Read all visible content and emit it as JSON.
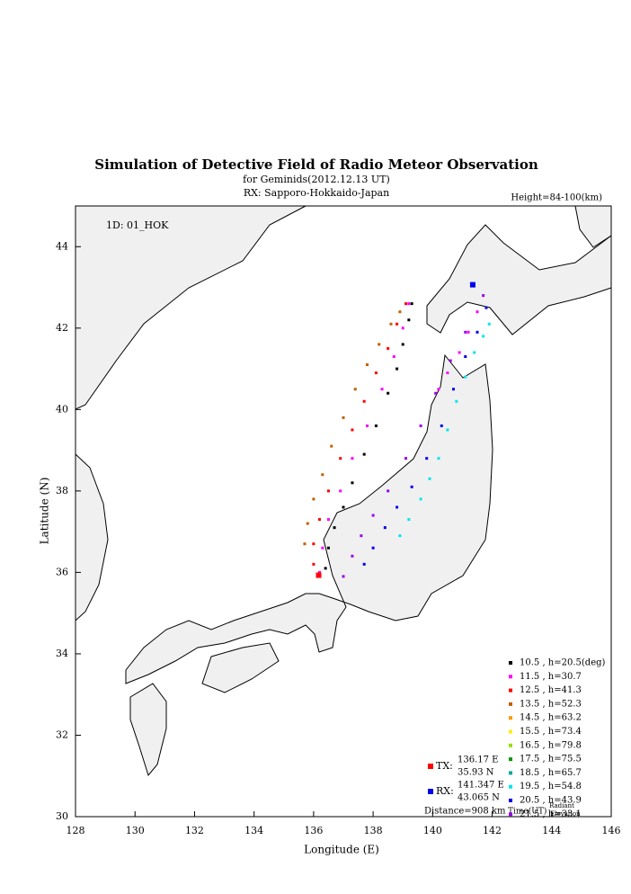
{
  "chart_data": {
    "type": "scatter",
    "title": "Simulation of Detective Field of Radio Meteor Observation",
    "subtitle": "for Geminids(2012.12.13 UT)",
    "subtitle2": "RX: Sapporo-Hokkaido-Japan",
    "height_note": "Height=84-100(km)",
    "station_id": "1D: 01_HOK",
    "x_label": "Longitude (E)",
    "y_label": "Latitude (N)",
    "xlim": [
      128,
      146
    ],
    "xticks": [
      128,
      130,
      132,
      134,
      136,
      138,
      140,
      142,
      144,
      146
    ],
    "ylim": [
      30,
      45
    ],
    "yticks": [
      30,
      32,
      34,
      36,
      38,
      40,
      42,
      44
    ],
    "series": [
      {
        "name": "10.5 ,  h=20.5(deg)",
        "color": "#000000",
        "x": [
          136.4,
          136.5,
          136.7,
          137.0,
          137.3,
          137.7,
          138.1,
          138.5,
          138.8,
          139.0,
          139.2,
          139.3
        ],
        "values": [
          36.1,
          36.6,
          37.1,
          37.6,
          38.2,
          38.9,
          39.6,
          40.4,
          41.0,
          41.6,
          42.2,
          42.6
        ]
      },
      {
        "name": "11.5 ,  h=30.7",
        "color": "#ff00ff",
        "x": [
          136.2,
          136.3,
          136.5,
          136.9,
          137.3,
          137.8,
          138.3,
          138.7,
          139.0,
          139.2,
          140.2,
          140.5,
          140.9,
          141.2,
          141.5
        ],
        "values": [
          36.0,
          36.6,
          37.3,
          38.0,
          38.8,
          39.6,
          40.5,
          41.3,
          42.0,
          42.6,
          40.5,
          40.9,
          41.4,
          41.9,
          42.4
        ]
      },
      {
        "name": "12.5 ,  h=41.3",
        "color": "#ff0000",
        "x": [
          136.0,
          136.0,
          136.2,
          136.5,
          136.9,
          137.3,
          137.7,
          138.1,
          138.5,
          138.8,
          139.1
        ],
        "values": [
          36.2,
          36.7,
          37.3,
          38.0,
          38.8,
          39.5,
          40.2,
          40.9,
          41.5,
          42.1,
          42.6
        ]
      },
      {
        "name": "13.5 ,  h=52.3",
        "color": "#c06000",
        "x": [
          135.7,
          135.8,
          136.0,
          136.3,
          136.6,
          137.0,
          137.4,
          137.8,
          138.2,
          138.6,
          138.9
        ],
        "values": [
          36.7,
          37.2,
          37.8,
          38.4,
          39.1,
          39.8,
          40.5,
          41.1,
          41.6,
          42.1,
          42.4
        ]
      },
      {
        "name": "14.5 ,  h=63.2",
        "color": "#ff9900",
        "x": [],
        "values": []
      },
      {
        "name": "15.5 ,  h=73.4",
        "color": "#ffee00",
        "x": [],
        "values": []
      },
      {
        "name": "16.5 ,  h=79.8",
        "color": "#99dd00",
        "x": [],
        "values": []
      },
      {
        "name": "17.5 ,  h=75.5",
        "color": "#009900",
        "x": [],
        "values": []
      },
      {
        "name": "18.5 ,  h=65.7",
        "color": "#00aa99",
        "x": [],
        "values": []
      },
      {
        "name": "19.5 ,  h=54.8",
        "color": "#00e5ee",
        "x": [
          138.9,
          139.2,
          139.6,
          139.9,
          140.2,
          140.5,
          140.8,
          141.1,
          141.4,
          141.7,
          141.9
        ],
        "values": [
          36.9,
          37.3,
          37.8,
          38.3,
          38.8,
          39.5,
          40.2,
          40.8,
          41.4,
          41.8,
          42.1
        ]
      },
      {
        "name": "20.5 ,  h=43.9",
        "color": "#0000ee",
        "x": [
          137.7,
          138.0,
          138.4,
          138.8,
          139.3,
          139.8,
          140.3,
          140.7,
          141.1,
          141.5,
          141.8
        ],
        "values": [
          36.2,
          36.6,
          37.1,
          37.6,
          38.1,
          38.8,
          39.6,
          40.5,
          41.3,
          41.9,
          42.5
        ]
      },
      {
        "name": "21.5 ,  h=33.1",
        "color": "#9900ee",
        "x": [
          137.0,
          137.3,
          137.6,
          138.0,
          138.5,
          139.1,
          139.6,
          140.1,
          140.6,
          141.1,
          141.7
        ],
        "values": [
          35.9,
          36.4,
          36.9,
          37.4,
          38.0,
          38.8,
          39.6,
          40.4,
          41.2,
          41.9,
          42.8
        ]
      }
    ],
    "tx": {
      "label": "TX:",
      "lon": 136.17,
      "lon_label": "136.17 E",
      "lat": 35.93,
      "lat_label": "35.93 N",
      "color": "#ff0000"
    },
    "rx": {
      "label": "RX:",
      "lon": 141.347,
      "lon_label": "141.347 E",
      "lat": 43.065,
      "lat_label": "43.065 N",
      "color": "#0000ee"
    },
    "distance": "Distance=908 km",
    "time_label": "Time(UT)",
    "radiant_label": "Radiant",
    "elevation_label": "Elevation"
  }
}
